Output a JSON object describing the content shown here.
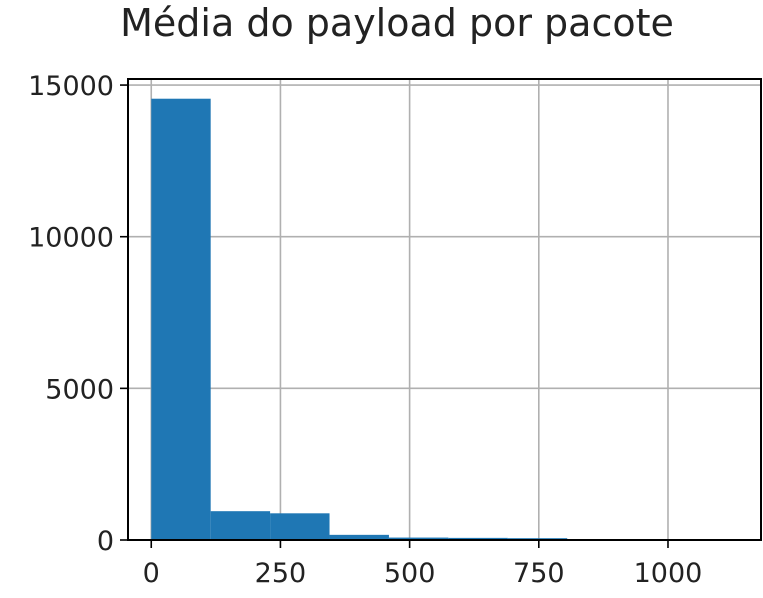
{
  "chart_data": {
    "type": "bar",
    "title": "Média do payload por pacote",
    "xlabel": "",
    "ylabel": "",
    "xlim": [
      -45,
      1180
    ],
    "ylim": [
      0,
      15200
    ],
    "xticks": [
      0,
      250,
      500,
      750,
      1000
    ],
    "xtick_labels": [
      "0",
      "250",
      "500",
      "750",
      "1000"
    ],
    "yticks": [
      0,
      5000,
      10000,
      15000
    ],
    "ytick_labels": [
      "0",
      "5000",
      "10000",
      "15000"
    ],
    "grid": true,
    "bar_color": "#1f77b4",
    "bins": [
      {
        "x0": 0,
        "x1": 115,
        "value": 14550
      },
      {
        "x0": 115,
        "x1": 230,
        "value": 950
      },
      {
        "x0": 230,
        "x1": 345,
        "value": 880
      },
      {
        "x0": 345,
        "x1": 460,
        "value": 170
      },
      {
        "x0": 460,
        "x1": 575,
        "value": 80
      },
      {
        "x0": 575,
        "x1": 690,
        "value": 70
      },
      {
        "x0": 690,
        "x1": 805,
        "value": 60
      },
      {
        "x0": 805,
        "x1": 920,
        "value": 10
      },
      {
        "x0": 920,
        "x1": 1035,
        "value": 5
      },
      {
        "x0": 1035,
        "x1": 1150,
        "value": 5
      }
    ]
  }
}
